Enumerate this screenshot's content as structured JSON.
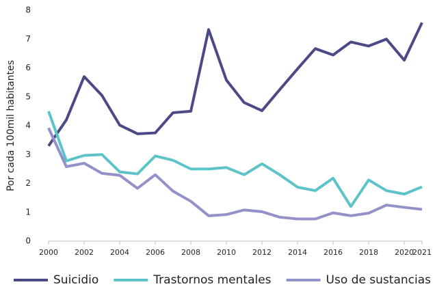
{
  "chart_data": {
    "type": "line",
    "y_label": "Por cada 100mil habitantes",
    "x": [
      2000,
      2001,
      2002,
      2003,
      2004,
      2005,
      2006,
      2007,
      2008,
      2009,
      2010,
      2011,
      2012,
      2013,
      2014,
      2015,
      2016,
      2017,
      2018,
      2019,
      2020,
      2021
    ],
    "series": [
      {
        "name": "Suicidio",
        "color": "#4b4a86",
        "values": [
          3.3,
          4.2,
          5.7,
          5.05,
          4.02,
          3.72,
          3.75,
          4.45,
          4.5,
          7.33,
          5.58,
          4.8,
          4.52,
          5.25,
          5.97,
          6.67,
          6.45,
          6.9,
          6.76,
          7.0,
          6.27,
          7.57
        ]
      },
      {
        "name": "Trastornos mentales",
        "color": "#5cc4c9",
        "values": [
          4.5,
          2.78,
          2.97,
          3.0,
          2.4,
          2.33,
          2.95,
          2.8,
          2.5,
          2.5,
          2.55,
          2.3,
          2.68,
          2.3,
          1.87,
          1.75,
          2.18,
          1.2,
          2.12,
          1.75,
          1.63,
          1.88
        ]
      },
      {
        "name": "Uso de sustancias",
        "color": "#9291c9",
        "values": [
          3.92,
          2.58,
          2.7,
          2.35,
          2.28,
          1.83,
          2.3,
          1.73,
          1.38,
          0.88,
          0.92,
          1.08,
          1.02,
          0.83,
          0.77,
          0.77,
          0.98,
          0.88,
          0.97,
          1.25,
          1.17,
          1.1
        ]
      }
    ],
    "xlim": [
      2000,
      2021
    ],
    "xticks": [
      2000,
      2002,
      2004,
      2006,
      2008,
      2010,
      2012,
      2014,
      2016,
      2018,
      2020,
      2021
    ],
    "ylim": [
      0,
      8
    ],
    "yticks": [
      0,
      1,
      2,
      3,
      4,
      5,
      6,
      7,
      8
    ],
    "legend": "bottom"
  }
}
